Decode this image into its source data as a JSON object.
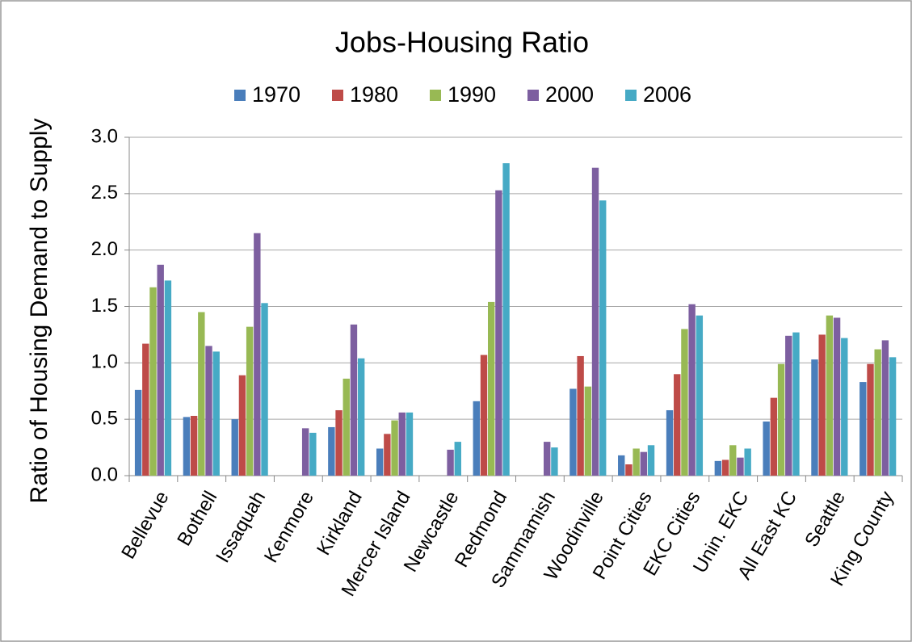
{
  "chart_data": {
    "type": "bar",
    "title": "Jobs-Housing Ratio",
    "y_label": "Ratio of Housing Demand to Supply",
    "categories": [
      "Bellevue",
      "Bothell",
      "Issaquah",
      "Kenmore",
      "Kirkland",
      "Mercer Island",
      "Newcastle",
      "Redmond",
      "Sammamish",
      "Woodinville",
      "Point Cities",
      "EKC Cities",
      "Unin. EKC",
      "All East KC",
      "Seattle",
      "King County"
    ],
    "series": [
      {
        "name": "1970",
        "color": "#4a7ebb",
        "values": [
          0.76,
          0.52,
          0.5,
          null,
          0.43,
          0.24,
          null,
          0.66,
          null,
          0.77,
          0.18,
          0.58,
          0.13,
          0.48,
          1.03,
          0.83
        ]
      },
      {
        "name": "1980",
        "color": "#be4b48",
        "values": [
          1.17,
          0.53,
          0.89,
          null,
          0.58,
          0.37,
          null,
          1.07,
          null,
          1.06,
          0.1,
          0.9,
          0.14,
          0.69,
          1.25,
          0.99
        ]
      },
      {
        "name": "1990",
        "color": "#98b954",
        "values": [
          1.67,
          1.45,
          1.32,
          null,
          0.86,
          0.49,
          null,
          1.54,
          null,
          0.79,
          0.24,
          1.3,
          0.27,
          0.99,
          1.42,
          1.12
        ]
      },
      {
        "name": "2000",
        "color": "#7d5fa0",
        "values": [
          1.87,
          1.15,
          2.15,
          0.42,
          1.34,
          0.56,
          0.23,
          2.53,
          0.3,
          2.73,
          0.21,
          1.52,
          0.16,
          1.24,
          1.4,
          1.2
        ]
      },
      {
        "name": "2006",
        "color": "#46aac5",
        "values": [
          1.73,
          1.1,
          1.53,
          0.38,
          1.04,
          0.56,
          0.3,
          2.77,
          0.25,
          2.44,
          0.27,
          1.42,
          0.24,
          1.27,
          1.22,
          1.05
        ]
      }
    ],
    "ylim": [
      0,
      3
    ],
    "yticks": [
      {
        "value": 0,
        "label": "0.0"
      },
      {
        "value": 0.5,
        "label": "0.5"
      },
      {
        "value": 1,
        "label": "1.0"
      },
      {
        "value": 1.5,
        "label": "1.5"
      },
      {
        "value": 2,
        "label": "2.0"
      },
      {
        "value": 2.5,
        "label": "2.5"
      },
      {
        "value": 3,
        "label": "3.0"
      }
    ],
    "grid": true,
    "legend": "top"
  }
}
